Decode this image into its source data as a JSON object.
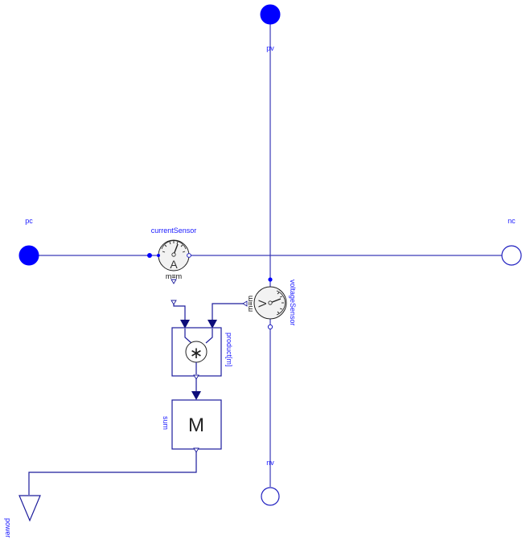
{
  "diagram": {
    "ports": {
      "pc": "pc",
      "nc": "nc",
      "pv": "pv",
      "nv": "nv",
      "power": "power"
    },
    "components": {
      "current_sensor": {
        "name": "currentSensor",
        "symbol": "A",
        "mode_label": "m≡m"
      },
      "voltage_sensor": {
        "name": "voltageSensor",
        "symbol": "V",
        "mode_label": "m≡m"
      },
      "product": {
        "name": "product[m]",
        "symbol": "∗"
      },
      "sum": {
        "name": "sum",
        "symbol": "M"
      }
    },
    "colors": {
      "electric_wire": "#3a3ab8",
      "signal_wire": "#1c1c9c",
      "port_fill": "#0000ff",
      "label_text": "#1a1aff"
    }
  }
}
